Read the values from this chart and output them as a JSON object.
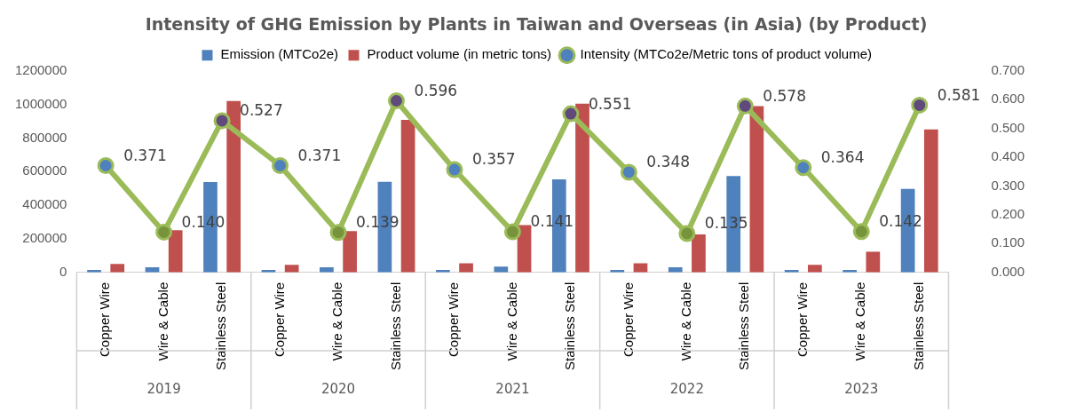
{
  "chart_data": {
    "type": "bar",
    "title": "Intensity of GHG Emission by Plants in Taiwan and Overseas (in Asia) (by Product)",
    "categories": [
      "Copper Wire",
      "Wire & Cable",
      "Stainless Steel",
      "Copper Wire",
      "Wire & Cable",
      "Stainless Steel",
      "Copper Wire",
      "Wire & Cable",
      "Stainless Steel",
      "Copper Wire",
      "Wire & Cable",
      "Stainless Steel",
      "Copper Wire",
      "Wire & Cable",
      "Stainless Steel"
    ],
    "series": [
      {
        "name": "Emission (MTCo2e)",
        "color": "#4f81bd",
        "values": [
          15000,
          30000,
          538000,
          15000,
          30000,
          540000,
          15000,
          35000,
          554000,
          15000,
          30000,
          574000,
          15000,
          15000,
          497000
        ]
      },
      {
        "name": "Product volume (in metric tons)",
        "color": "#c0504d",
        "values": [
          50000,
          251000,
          1020000,
          45000,
          246000,
          908000,
          55000,
          282000,
          1005000,
          55000,
          226000,
          990000,
          45000,
          123000,
          851000
        ]
      },
      {
        "name": "Intensity (MTCo2e/Metric tons of product volume)",
        "type": "line",
        "axis": "y2",
        "color": "#9bbb59",
        "marker": "circle",
        "value_labels": [
          "0.371",
          "0.140",
          "0.527",
          "0.371",
          "0.139",
          "0.596",
          "0.357",
          "0.141",
          "0.551",
          "0.348",
          "0.135",
          "0.578",
          "0.364",
          "0.142",
          "0.581"
        ],
        "colors": [
          "#4f81bd",
          "#77933c",
          "#604a7b",
          "#4f81bd",
          "#77933c",
          "#604a7b",
          "#4f81bd",
          "#77933c",
          "#604a7b",
          "#4f81bd",
          "#77933c",
          "#604a7b",
          "#4f81bd",
          "#77933c",
          "#604a7b"
        ],
        "values": [
          0.371,
          0.14,
          0.527,
          0.371,
          0.139,
          0.596,
          0.357,
          0.141,
          0.551,
          0.348,
          0.135,
          0.578,
          0.364,
          0.142,
          0.581
        ]
      }
    ],
    "annotations": [
      "2019",
      "2020",
      "2021",
      "2022",
      "2023"
    ],
    "ylim": [
      0,
      1200000
    ],
    "yticks": [
      0,
      200000,
      400000,
      600000,
      800000,
      1000000,
      1200000
    ],
    "y2lim": [
      0,
      0.7
    ],
    "y2ticks": [
      {
        "value": 0,
        "label": "0.000"
      },
      {
        "value": 0.1,
        "label": "0.100"
      },
      {
        "value": 0.2,
        "label": "0.200"
      },
      {
        "value": 0.3,
        "label": "0.300"
      },
      {
        "value": 0.4,
        "label": "0.400"
      },
      {
        "value": 0.5,
        "label": "0.500"
      },
      {
        "value": 0.6,
        "label": "0.600"
      },
      {
        "value": 0.7,
        "label": "0.700"
      }
    ],
    "grid": false,
    "legend": "top"
  }
}
